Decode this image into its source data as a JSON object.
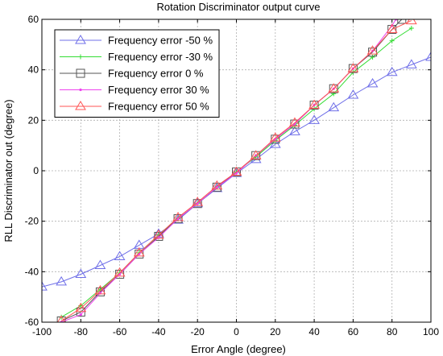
{
  "chart_data": {
    "type": "line",
    "title": "Rotation Discriminator output curve",
    "xlabel": "Error Angle (degree)",
    "ylabel": "RLL Discriminator out (degree)",
    "xlim": [
      -100,
      100
    ],
    "ylim": [
      -60,
      60
    ],
    "xticks": [
      -100,
      -80,
      -60,
      -40,
      -20,
      0,
      20,
      40,
      60,
      80,
      100
    ],
    "yticks": [
      -60,
      -40,
      -20,
      0,
      20,
      40,
      60
    ],
    "xtick_labels": [
      "-100",
      "-80",
      "-60",
      "-40",
      "-20",
      "0",
      "20",
      "40",
      "60",
      "80",
      "100"
    ],
    "ytick_labels": [
      "-60",
      "-40",
      "-20",
      "0",
      "20",
      "40",
      "60"
    ],
    "grid": true,
    "legend_position": "top-left",
    "series": [
      {
        "name": "Frequency error -50 %",
        "color": "#6f6fe8",
        "marker": "triangle",
        "x": [
          -100,
          -90,
          -80,
          -70,
          -60,
          -50,
          -40,
          -30,
          -20,
          -10,
          0,
          10,
          20,
          30,
          40,
          50,
          60,
          70,
          80,
          90,
          100
        ],
        "y": [
          -46,
          -44,
          -41,
          -37.5,
          -34,
          -29.5,
          -25,
          -19.5,
          -13,
          -7,
          -1,
          4.5,
          10.5,
          15.5,
          20,
          25,
          30,
          34.5,
          39,
          42,
          45
        ]
      },
      {
        "name": "Frequency error -30 %",
        "color": "#33dd33",
        "marker": "plus",
        "x": [
          -90,
          -80,
          -70,
          -60,
          -50,
          -40,
          -30,
          -20,
          -10,
          0,
          10,
          20,
          30,
          40,
          50,
          60,
          70,
          80,
          90
        ],
        "y": [
          -58,
          -53.5,
          -47,
          -40.5,
          -32.5,
          -25.5,
          -19,
          -13,
          -6.5,
          -0.5,
          5.5,
          12,
          18,
          24.5,
          30.5,
          39,
          45,
          51.5,
          56.5
        ]
      },
      {
        "name": "Frequency error 0 %",
        "color": "#555555",
        "marker": "square",
        "x": [
          -90,
          -80,
          -70,
          -60,
          -50,
          -40,
          -30,
          -20,
          -10,
          0,
          10,
          20,
          30,
          40,
          50,
          60,
          70,
          80,
          85
        ],
        "y": [
          -59.5,
          -56,
          -48,
          -41,
          -33,
          -26,
          -19,
          -13,
          -6.5,
          -0.5,
          6,
          12.5,
          18.5,
          26,
          32.5,
          40.5,
          47,
          56,
          60
        ]
      },
      {
        "name": "Frequency error 30 %",
        "color": "#ee44ee",
        "marker": "dot",
        "x": [
          -90,
          -80,
          -70,
          -60,
          -50,
          -40,
          -30,
          -20,
          -10,
          0,
          10,
          20,
          30,
          40,
          50,
          60,
          70,
          80,
          82
        ],
        "y": [
          -60,
          -57,
          -48.5,
          -41,
          -33,
          -26.5,
          -19,
          -13,
          -6.5,
          -1,
          6,
          12.5,
          18.5,
          26,
          32.5,
          40.5,
          47.5,
          57.5,
          60
        ]
      },
      {
        "name": "Frequency error 50 %",
        "color": "#ff5555",
        "marker": "triangle",
        "x": [
          -90,
          -80,
          -70,
          -60,
          -50,
          -40,
          -30,
          -20,
          -10,
          0,
          10,
          20,
          30,
          40,
          50,
          60,
          70,
          80,
          90
        ],
        "y": [
          -59.5,
          -54.5,
          -47.5,
          -40.5,
          -32.5,
          -25.5,
          -18.5,
          -12.5,
          -6,
          -0.5,
          6,
          13,
          19,
          26,
          32.5,
          40.5,
          47.5,
          56,
          59.5
        ]
      }
    ]
  }
}
